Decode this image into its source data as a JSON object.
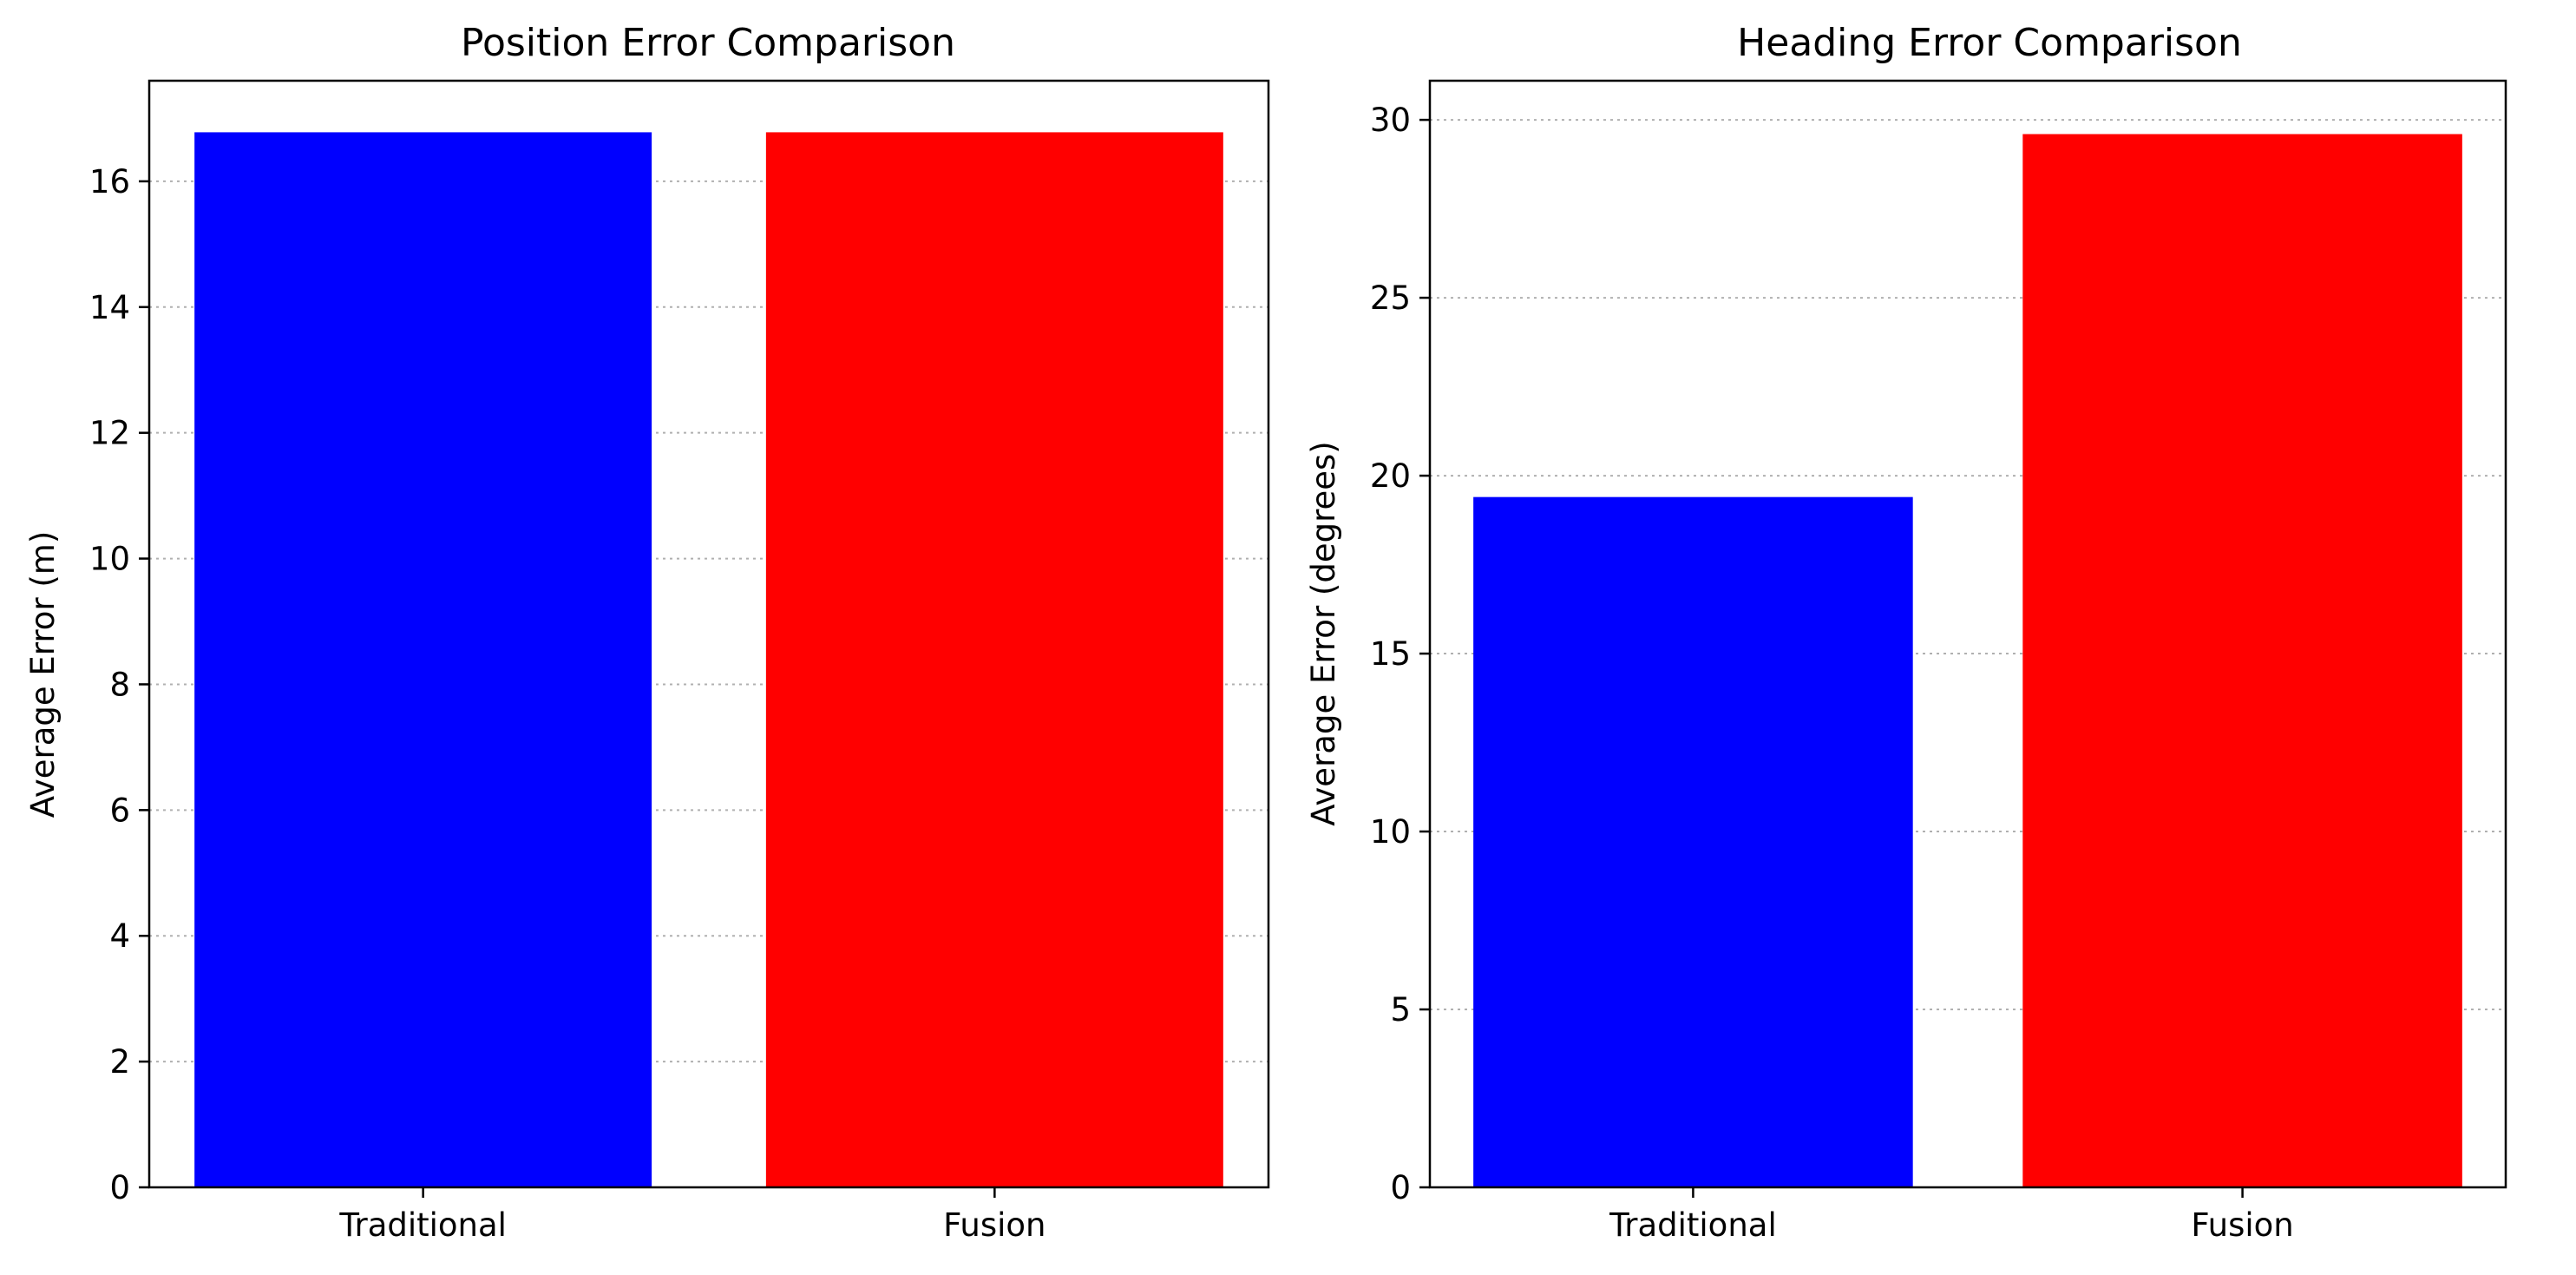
{
  "chart_data": [
    {
      "type": "bar",
      "title": "Position Error Comparison",
      "xlabel": "",
      "ylabel": "Average Error (m)",
      "categories": [
        "Traditional",
        "Fusion"
      ],
      "values": [
        16.78,
        16.78
      ],
      "colors": [
        "#0000ff",
        "#ff0000"
      ],
      "ylim": [
        0,
        17.6
      ],
      "yticks": [
        0,
        2,
        4,
        6,
        8,
        10,
        12,
        14,
        16
      ],
      "grid": "y-dotted",
      "legend": "none"
    },
    {
      "type": "bar",
      "title": "Heading Error Comparison",
      "xlabel": "",
      "ylabel": "Average Error (degrees)",
      "categories": [
        "Traditional",
        "Fusion"
      ],
      "values": [
        19.4,
        29.6
      ],
      "colors": [
        "#0000ff",
        "#ff0000"
      ],
      "ylim": [
        0,
        31.1
      ],
      "yticks": [
        0,
        5,
        10,
        15,
        20,
        25,
        30
      ],
      "grid": "y-dotted",
      "legend": "none"
    }
  ]
}
